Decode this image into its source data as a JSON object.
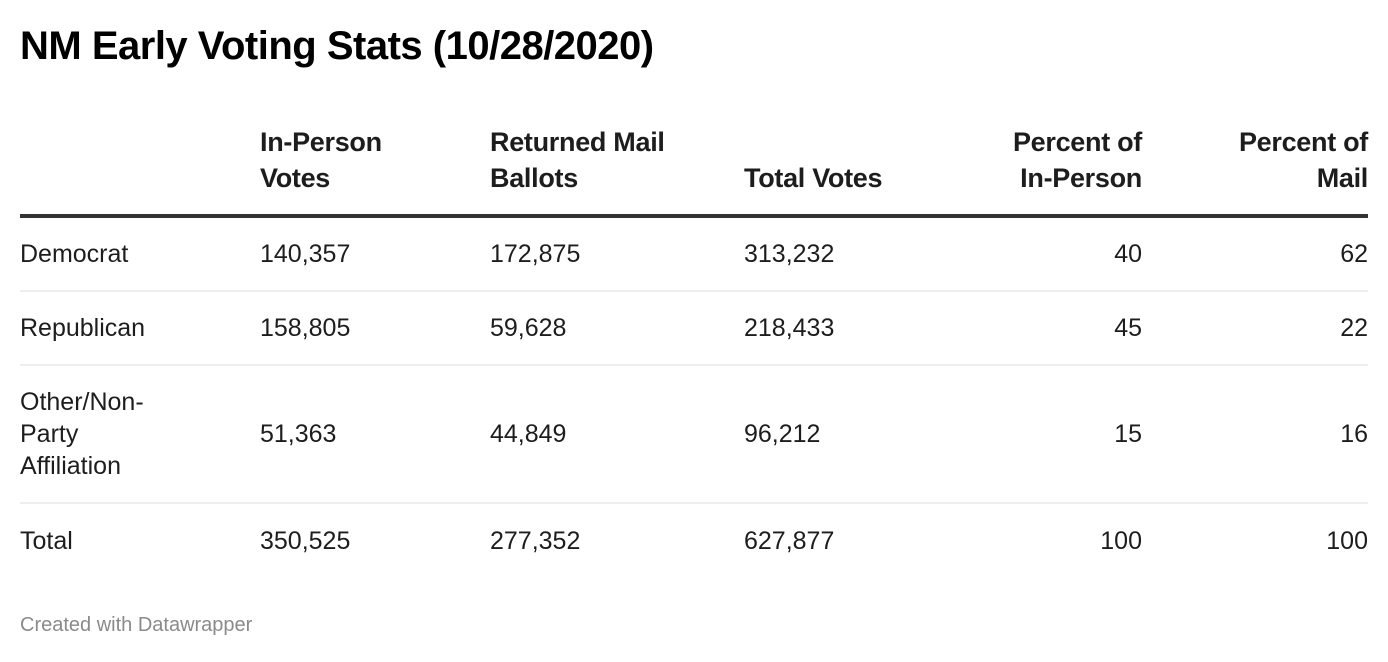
{
  "title": "NM Early Voting Stats (10/28/2020)",
  "footer": "Created with Datawrapper",
  "table": {
    "headers": [
      {
        "line1": "",
        "line2": ""
      },
      {
        "line1": "In-Person",
        "line2": "Votes"
      },
      {
        "line1": "Returned Mail",
        "line2": "Ballots"
      },
      {
        "line1": "",
        "line2": "Total Votes"
      },
      {
        "line1": "Percent of",
        "line2": "In-Person"
      },
      {
        "line1": "Percent of",
        "line2": "Mail"
      }
    ],
    "rows": [
      {
        "label": "Democrat",
        "in_person": "140,357",
        "mail": "172,875",
        "total": "313,232",
        "pct_in_person": "40",
        "pct_mail": "62"
      },
      {
        "label": "Republican",
        "in_person": "158,805",
        "mail": "59,628",
        "total": "218,433",
        "pct_in_person": "45",
        "pct_mail": "22"
      },
      {
        "label": "Other/Non-Party Affiliation",
        "in_person": "51,363",
        "mail": "44,849",
        "total": "96,212",
        "pct_in_person": "15",
        "pct_mail": "16"
      },
      {
        "label": "Total",
        "in_person": "350,525",
        "mail": "277,352",
        "total": "627,877",
        "pct_in_person": "100",
        "pct_mail": "100"
      }
    ]
  },
  "colors": {
    "text": "#1d1d1d",
    "header_rule": "#333333",
    "row_divider": "#eeeeee",
    "footer_text": "#8a8a8a",
    "background": "#ffffff"
  },
  "chart_data": {
    "type": "table",
    "title": "NM Early Voting Stats (10/28/2020)",
    "columns": [
      "",
      "In-Person Votes",
      "Returned Mail Ballots",
      "Total Votes",
      "Percent of In-Person",
      "Percent of Mail"
    ],
    "rows": [
      [
        "Democrat",
        140357,
        172875,
        313232,
        40,
        62
      ],
      [
        "Republican",
        158805,
        59628,
        218433,
        45,
        22
      ],
      [
        "Other/Non-Party Affiliation",
        51363,
        44849,
        96212,
        15,
        16
      ],
      [
        "Total",
        350525,
        277352,
        627877,
        100,
        100
      ]
    ],
    "source_note": "Created with Datawrapper"
  }
}
